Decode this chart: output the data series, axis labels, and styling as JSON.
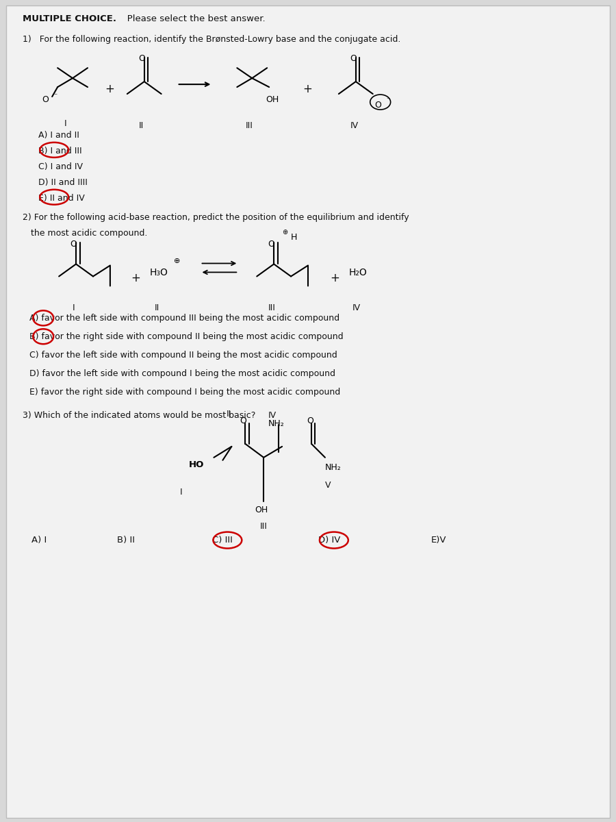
{
  "bg_color": "#d8d8d8",
  "paper_color": "#f2f2f2",
  "title_bold": "MULTIPLE CHOICE.",
  "title_normal": "   Please select the best answer.",
  "q1_text": "1)   For the following reaction, identify the Brønsted-Lowry base and the conjugate acid.",
  "q1_answers": [
    "A) I and II",
    "B) I and III",
    "C) I and IV",
    "D) II and IIII",
    "E) II and IV"
  ],
  "q1_circled_idx": [
    1,
    4
  ],
  "q2_text1": "2) For the following acid-base reaction, predict the position of the equilibrium and identify",
  "q2_text2": "   the most acidic compound.",
  "q2_answers": [
    "A) favor the left side with compound III being the most acidic compound",
    "B) favor the right side with compound II being the most acidic compound",
    "C) favor the left side with compound II being the most acidic compound",
    "D) favor the left side with compound I being the most acidic compound",
    "E) favor the right side with compound I being the most acidic compound"
  ],
  "q2_circled_idx": [
    0,
    1
  ],
  "q3_text": "3) Which of the indicated atoms would be most basic?",
  "q3_answers": [
    "A) I",
    "B) II",
    "C) III",
    "D) IV",
    "E)V"
  ],
  "q3_circled_idx": [
    2,
    3
  ],
  "text_color": "#111111",
  "circle_color": "#cc0000",
  "line_color": "#000000"
}
